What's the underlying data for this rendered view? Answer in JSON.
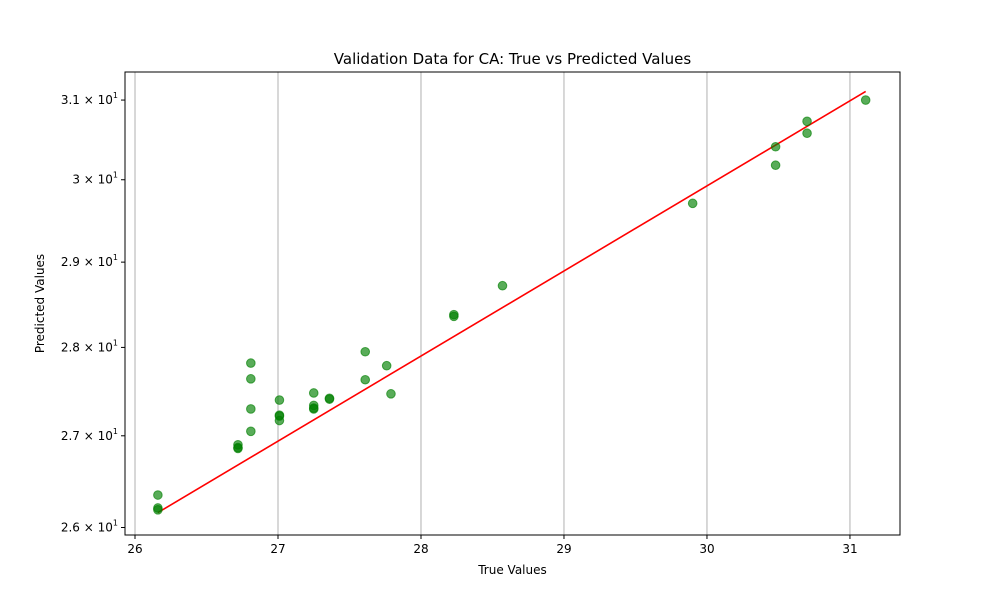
{
  "chart_data": {
    "type": "scatter",
    "title": "Validation Data for CA: True vs Predicted Values",
    "xlabel": "True Values",
    "ylabel": "Predicted Values",
    "xlim": [
      25.93,
      31.35
    ],
    "ylim": [
      25.92,
      31.36
    ],
    "yscale": "log",
    "grid": "x",
    "x_ticks": [
      {
        "value": 26,
        "label": "26"
      },
      {
        "value": 27,
        "label": "27"
      },
      {
        "value": 28,
        "label": "28"
      },
      {
        "value": 29,
        "label": "29"
      },
      {
        "value": 30,
        "label": "30"
      },
      {
        "value": 31,
        "label": "31"
      }
    ],
    "y_ticks": [
      {
        "value": 26,
        "mantissa": "2.6",
        "base": "10",
        "exp": "1"
      },
      {
        "value": 27,
        "mantissa": "2.7",
        "base": "10",
        "exp": "1"
      },
      {
        "value": 28,
        "mantissa": "2.8",
        "base": "10",
        "exp": "1"
      },
      {
        "value": 29,
        "mantissa": "2.9",
        "base": "10",
        "exp": "1"
      },
      {
        "value": 30,
        "mantissa": "3",
        "base": "10",
        "exp": "1"
      },
      {
        "value": 31,
        "mantissa": "3.1",
        "base": "10",
        "exp": "1"
      }
    ],
    "points": [
      {
        "x": 26.16,
        "y": 26.35
      },
      {
        "x": 26.16,
        "y": 26.21
      },
      {
        "x": 26.16,
        "y": 26.19
      },
      {
        "x": 26.72,
        "y": 26.9
      },
      {
        "x": 26.72,
        "y": 26.87
      },
      {
        "x": 26.72,
        "y": 26.86
      },
      {
        "x": 26.81,
        "y": 27.82
      },
      {
        "x": 26.81,
        "y": 27.64
      },
      {
        "x": 26.81,
        "y": 27.3
      },
      {
        "x": 26.81,
        "y": 27.05
      },
      {
        "x": 27.01,
        "y": 27.4
      },
      {
        "x": 27.01,
        "y": 27.23
      },
      {
        "x": 27.01,
        "y": 27.22
      },
      {
        "x": 27.01,
        "y": 27.17
      },
      {
        "x": 27.25,
        "y": 27.48
      },
      {
        "x": 27.25,
        "y": 27.34
      },
      {
        "x": 27.25,
        "y": 27.31
      },
      {
        "x": 27.25,
        "y": 27.3
      },
      {
        "x": 27.36,
        "y": 27.42
      },
      {
        "x": 27.36,
        "y": 27.41
      },
      {
        "x": 27.61,
        "y": 27.95
      },
      {
        "x": 27.61,
        "y": 27.63
      },
      {
        "x": 27.76,
        "y": 27.79
      },
      {
        "x": 27.79,
        "y": 27.47
      },
      {
        "x": 28.23,
        "y": 28.38
      },
      {
        "x": 28.23,
        "y": 28.36
      },
      {
        "x": 28.57,
        "y": 28.72
      },
      {
        "x": 29.9,
        "y": 29.71
      },
      {
        "x": 30.48,
        "y": 30.41
      },
      {
        "x": 30.48,
        "y": 30.18
      },
      {
        "x": 30.7,
        "y": 30.73
      },
      {
        "x": 30.7,
        "y": 30.58
      },
      {
        "x": 31.11,
        "y": 31.0
      }
    ],
    "reference_line": {
      "x": [
        26.16,
        31.11
      ],
      "y": [
        26.16,
        31.11
      ],
      "color": "#ff0000"
    },
    "colors": {
      "point": "#008000",
      "line": "#ff0000",
      "grid": "#b0b0b0"
    }
  }
}
